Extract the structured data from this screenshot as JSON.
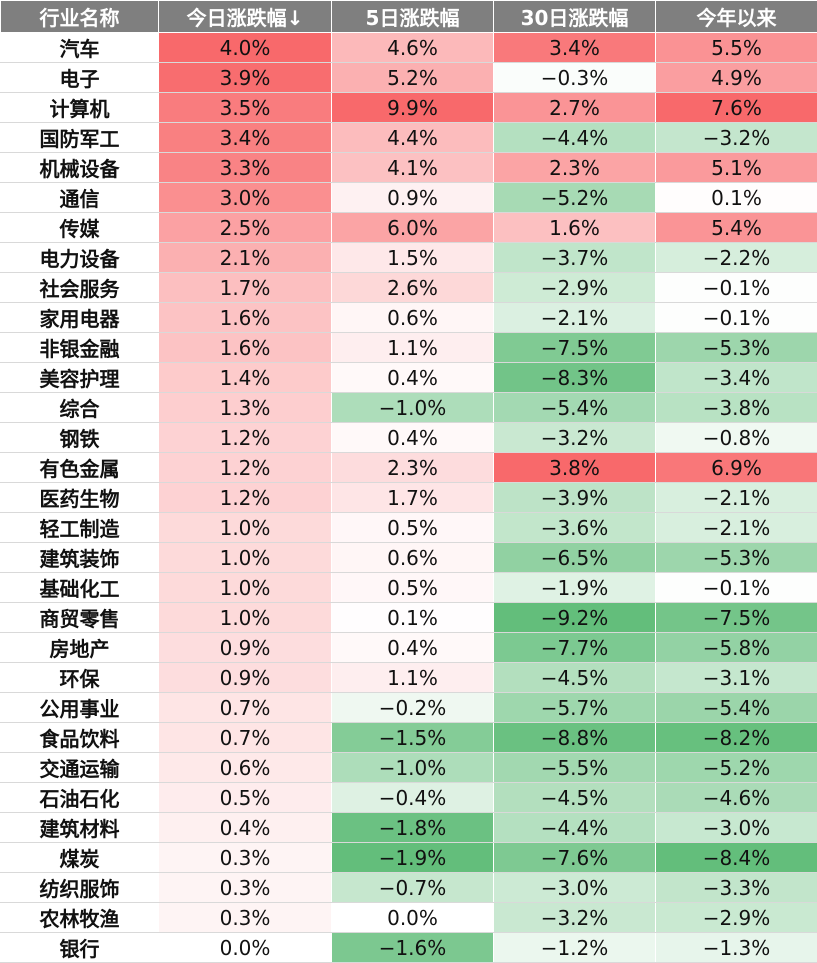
{
  "chart_data": {
    "type": "table",
    "columns": [
      "行业名称",
      "今日涨跌幅↓",
      "5日涨跌幅",
      "30日涨跌幅",
      "今年以来"
    ],
    "rows": [
      [
        "汽车",
        "4.0%",
        "4.6%",
        "3.4%",
        "5.5%"
      ],
      [
        "电子",
        "3.9%",
        "5.2%",
        "−0.3%",
        "4.9%"
      ],
      [
        "计算机",
        "3.5%",
        "9.9%",
        "2.7%",
        "7.6%"
      ],
      [
        "国防军工",
        "3.4%",
        "4.4%",
        "−4.4%",
        "−3.2%"
      ],
      [
        "机械设备",
        "3.3%",
        "4.1%",
        "2.3%",
        "5.1%"
      ],
      [
        "通信",
        "3.0%",
        "0.9%",
        "−5.2%",
        "0.1%"
      ],
      [
        "传媒",
        "2.5%",
        "6.0%",
        "1.6%",
        "5.4%"
      ],
      [
        "电力设备",
        "2.1%",
        "1.5%",
        "−3.7%",
        "−2.2%"
      ],
      [
        "社会服务",
        "1.7%",
        "2.6%",
        "−2.9%",
        "−0.1%"
      ],
      [
        "家用电器",
        "1.6%",
        "0.6%",
        "−2.1%",
        "−0.1%"
      ],
      [
        "非银金融",
        "1.6%",
        "1.1%",
        "−7.5%",
        "−5.3%"
      ],
      [
        "美容护理",
        "1.4%",
        "0.4%",
        "−8.3%",
        "−3.4%"
      ],
      [
        "综合",
        "1.3%",
        "−1.0%",
        "−5.4%",
        "−3.8%"
      ],
      [
        "钢铁",
        "1.2%",
        "0.4%",
        "−3.2%",
        "−0.8%"
      ],
      [
        "有色金属",
        "1.2%",
        "2.3%",
        "3.8%",
        "6.9%"
      ],
      [
        "医药生物",
        "1.2%",
        "1.7%",
        "−3.9%",
        "−2.1%"
      ],
      [
        "轻工制造",
        "1.0%",
        "0.5%",
        "−3.6%",
        "−2.1%"
      ],
      [
        "建筑装饰",
        "1.0%",
        "0.6%",
        "−6.5%",
        "−5.3%"
      ],
      [
        "基础化工",
        "1.0%",
        "0.5%",
        "−1.9%",
        "−0.1%"
      ],
      [
        "商贸零售",
        "1.0%",
        "0.1%",
        "−9.2%",
        "−7.5%"
      ],
      [
        "房地产",
        "0.9%",
        "0.4%",
        "−7.7%",
        "−5.8%"
      ],
      [
        "环保",
        "0.9%",
        "1.1%",
        "−4.5%",
        "−3.1%"
      ],
      [
        "公用事业",
        "0.7%",
        "−0.2%",
        "−5.7%",
        "−5.4%"
      ],
      [
        "食品饮料",
        "0.7%",
        "−1.5%",
        "−8.8%",
        "−8.2%"
      ],
      [
        "交通运输",
        "0.6%",
        "−1.0%",
        "−5.5%",
        "−5.2%"
      ],
      [
        "石油石化",
        "0.5%",
        "−0.4%",
        "−4.5%",
        "−4.6%"
      ],
      [
        "建筑材料",
        "0.4%",
        "−1.8%",
        "−4.4%",
        "−3.0%"
      ],
      [
        "煤炭",
        "0.3%",
        "−1.9%",
        "−7.6%",
        "−8.4%"
      ],
      [
        "纺织服饰",
        "0.3%",
        "−0.7%",
        "−3.0%",
        "−3.3%"
      ],
      [
        "农林牧渔",
        "0.3%",
        "0.0%",
        "−3.2%",
        "−2.9%"
      ],
      [
        "银行",
        "0.0%",
        "−1.6%",
        "−1.2%",
        "−1.3%"
      ]
    ],
    "colors": {
      "header_bg": "#7f7f7f",
      "header_text": "#ffffff",
      "positive_max": "#f8696b",
      "negative_max": "#63be7b",
      "neutral": "#ffffff"
    }
  }
}
